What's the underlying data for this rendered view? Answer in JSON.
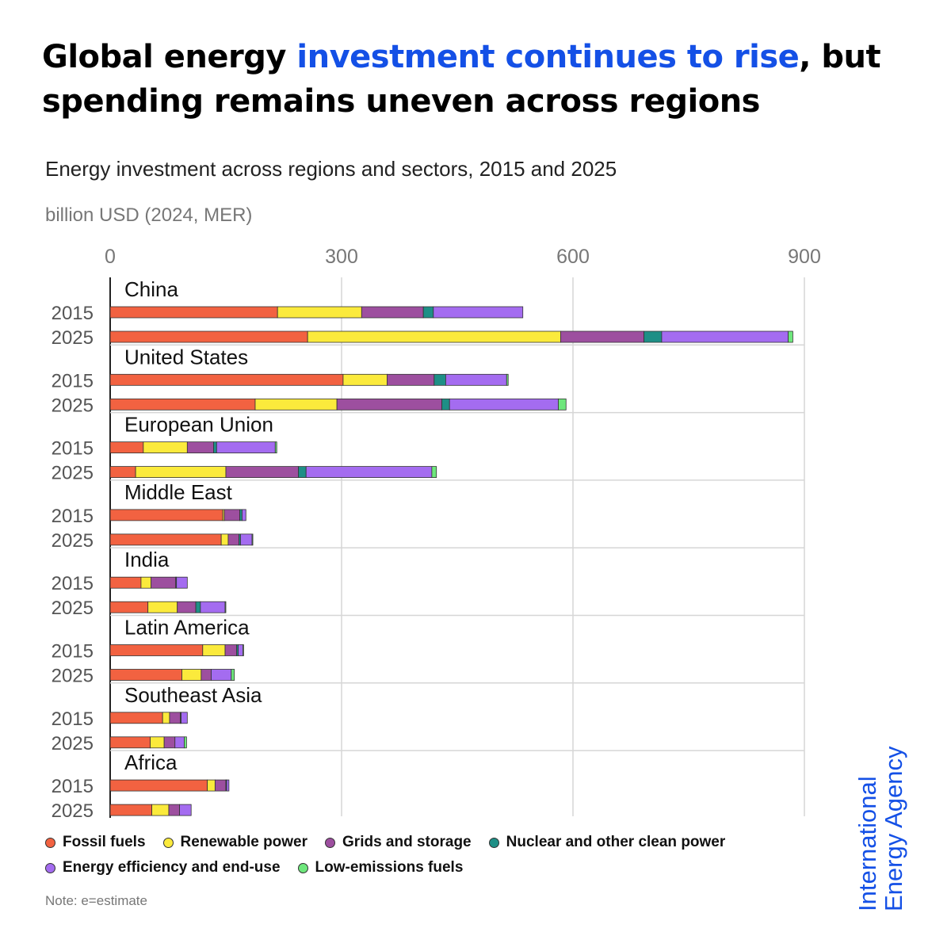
{
  "headline": {
    "part1": "Global energy ",
    "accent": "investment continues to rise",
    "part2": ", but spending remains uneven across regions"
  },
  "subtitle": "Energy investment across regions and sectors, 2015 and 2025",
  "unit_label": "billion USD (2024, MER)",
  "note": "Note: e=estimate",
  "logo": {
    "line1": "International",
    "line2": "Energy Agency"
  },
  "colors": {
    "accent": "#1450e6"
  },
  "legend": [
    {
      "label": "Fossil fuels",
      "color": "#f26241"
    },
    {
      "label": "Renewable power",
      "color": "#fbea3c"
    },
    {
      "label": "Grids and storage",
      "color": "#9d4f9f"
    },
    {
      "label": "Nuclear and other clean power",
      "color": "#1e8f86"
    },
    {
      "label": "Energy efficiency and end-use",
      "color": "#a46cf0"
    },
    {
      "label": "Low-emissions fuels",
      "color": "#6ee77c"
    }
  ],
  "chart_data": {
    "type": "bar",
    "orientation": "horizontal",
    "stacked": true,
    "xlim": [
      0,
      900
    ],
    "x_ticks": [
      "0",
      "300",
      "600",
      "900"
    ],
    "grid": true,
    "legend_placement": "bottom",
    "series_names": [
      "Fossil fuels",
      "Renewable power",
      "Grids and storage",
      "Nuclear and other clean power",
      "Energy efficiency and end-use",
      "Low-emissions fuels"
    ],
    "groups": [
      {
        "region": "China",
        "bars": [
          {
            "year": "2015",
            "values": [
              217,
              109,
              80,
              13,
              116,
              0
            ]
          },
          {
            "year": "2025",
            "values": [
              256,
              328,
              108,
              23,
              164,
              6
            ]
          }
        ]
      },
      {
        "region": "United States",
        "bars": [
          {
            "year": "2015",
            "values": [
              302,
              57,
              61,
              15,
              79,
              2
            ]
          },
          {
            "year": "2025",
            "values": [
              188,
              106,
              136,
              10,
              141,
              10
            ]
          }
        ]
      },
      {
        "region": "European Union",
        "bars": [
          {
            "year": "2015",
            "values": [
              43,
              57,
              34,
              4,
              76,
              2
            ]
          },
          {
            "year": "2025",
            "values": [
              33,
              117,
              94,
              10,
              163,
              6
            ]
          }
        ]
      },
      {
        "region": "Middle East",
        "bars": [
          {
            "year": "2015",
            "values": [
              146,
              2,
              20,
              3,
              5,
              0
            ]
          },
          {
            "year": "2025",
            "values": [
              144,
              9,
              14,
              2,
              15,
              1
            ]
          }
        ]
      },
      {
        "region": "India",
        "bars": [
          {
            "year": "2015",
            "values": [
              40,
              13,
              32,
              1,
              14,
              0
            ]
          },
          {
            "year": "2025",
            "values": [
              49,
              38,
              24,
              6,
              32,
              1
            ]
          }
        ]
      },
      {
        "region": "Latin America",
        "bars": [
          {
            "year": "2015",
            "values": [
              120,
              29,
              15,
              2,
              6,
              1
            ]
          },
          {
            "year": "2025",
            "values": [
              93,
              25,
              13,
              0,
              26,
              4
            ]
          }
        ]
      },
      {
        "region": "Southeast Asia",
        "bars": [
          {
            "year": "2015",
            "values": [
              68,
              9,
              14,
              1,
              8,
              0
            ]
          },
          {
            "year": "2025",
            "values": [
              52,
              18,
              14,
              0,
              12,
              3
            ]
          }
        ]
      },
      {
        "region": "Africa",
        "bars": [
          {
            "year": "2015",
            "values": [
              126,
              10,
              14,
              1,
              3,
              0
            ]
          },
          {
            "year": "2025",
            "values": [
              54,
              22,
              14,
              0,
              15,
              0
            ]
          }
        ]
      }
    ]
  }
}
